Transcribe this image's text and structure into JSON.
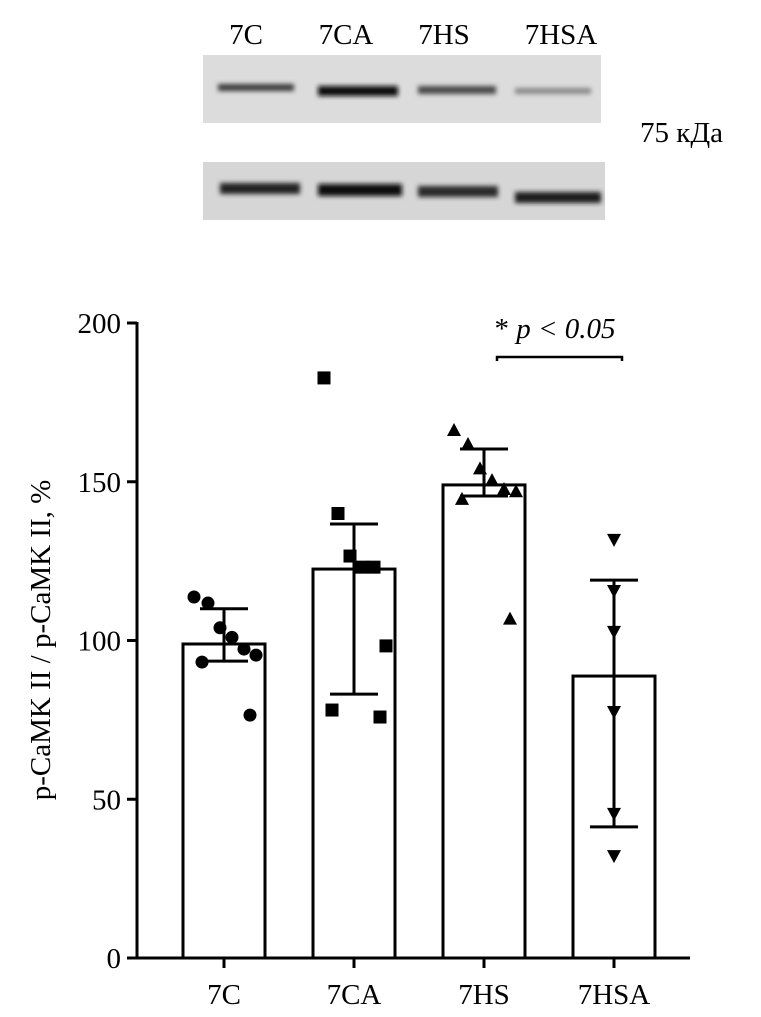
{
  "blot": {
    "lane_labels": [
      "7C",
      "7CA",
      "7HS",
      "7HSA"
    ],
    "size_marker": "75 кДа"
  },
  "chart_data": {
    "type": "bar",
    "title": "",
    "xlabel": "",
    "ylabel": "p-CaMK II / p-CaMK II, %",
    "ylim": [
      0,
      200
    ],
    "yticks": [
      0,
      50,
      100,
      150,
      200
    ],
    "ytick_labels": [
      "0",
      "50",
      "100",
      "150",
      "200"
    ],
    "grid": false,
    "categories": [
      "7C",
      "7CA",
      "7HS",
      "7HSA"
    ],
    "values": [
      98.9,
      122.5,
      149.0,
      88.8
    ],
    "error_bars": [
      [
        93.5,
        110.0
      ],
      [
        83.1,
        136.7
      ],
      [
        145.5,
        160.3
      ],
      [
        41.3,
        119.0
      ]
    ],
    "points": [
      [
        113.7,
        111.8,
        104.0,
        101.0,
        97.3,
        95.4,
        93.2,
        76.5
      ],
      [
        182.7,
        140.0,
        126.6,
        123.1,
        123.1,
        98.3,
        78.1,
        75.9
      ],
      [
        166.3,
        161.9,
        154.2,
        150.5,
        147.7,
        147.0,
        144.6,
        106.9
      ],
      [
        131.7,
        115.6,
        102.7,
        77.5,
        45.4,
        32.1
      ]
    ],
    "markers": [
      "circle",
      "square",
      "triangle-up",
      "triangle-down"
    ],
    "annotation": {
      "star": "*",
      "text": "p < 0.05",
      "between": [
        "7HS",
        "7HSA"
      ]
    }
  }
}
